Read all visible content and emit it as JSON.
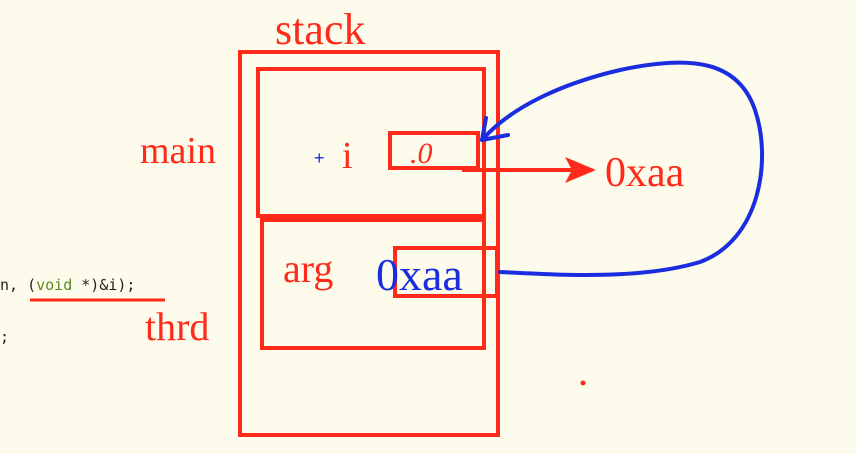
{
  "diagram": {
    "stack_label": "stack",
    "main_label": "main",
    "thrd_label": "thrd",
    "var_i_label": "i",
    "var_i_value": ".0",
    "plus_mark": "+",
    "address_label": "0xaa",
    "arg_label": "arg",
    "arg_value": "0xaa"
  },
  "code": {
    "line1_prefix": "n, (",
    "line1_keyword": "void",
    "line1_suffix": " *)&i);",
    "line2": ";"
  },
  "colors": {
    "red": "#ff2a1a",
    "blue": "#1a2ee0",
    "background": "#fdfbeb"
  }
}
